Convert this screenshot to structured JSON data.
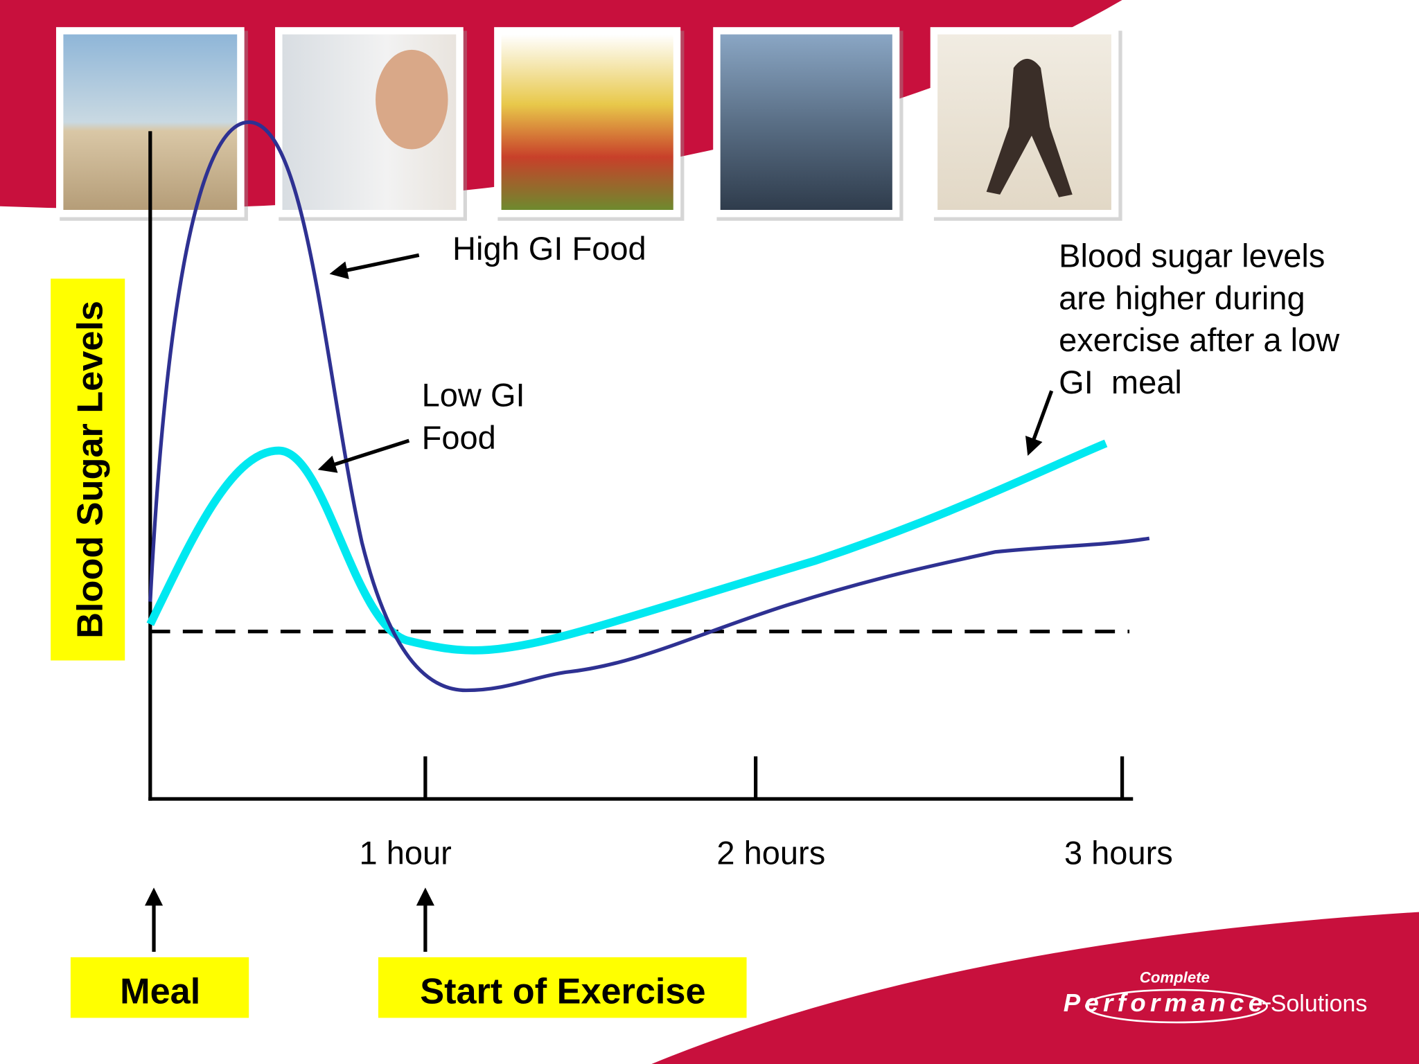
{
  "y_axis_label": "Blood Sugar Levels",
  "x_tick_labels": [
    "1 hour",
    "2 hours",
    "3 hours"
  ],
  "callouts": {
    "high_gi": "High GI Food",
    "low_gi": [
      "Low GI",
      "Food"
    ],
    "note": [
      "Blood sugar levels",
      "are higher during",
      "exercise after a low",
      "GI  meal"
    ]
  },
  "markers": {
    "meal": "Meal",
    "exercise": "Start of Exercise"
  },
  "logo": {
    "top": "Complete",
    "main": "Performance",
    "suffix": "Solutions"
  }
}
